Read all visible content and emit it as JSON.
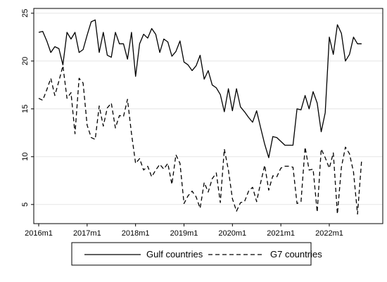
{
  "chart_data": {
    "type": "line",
    "title": "",
    "xlabel": "",
    "ylabel": "",
    "x_start": "2016m1",
    "x_tick_labels": [
      "2016m1",
      "2017m1",
      "2018m1",
      "2019m1",
      "2020m1",
      "2021m1",
      "2022m1"
    ],
    "y_ticks": [
      5,
      10,
      15,
      20,
      25
    ],
    "ylim": [
      3,
      25.5
    ],
    "grid": "horizontal",
    "legend_position": "bottom",
    "series": [
      {
        "name": "Gulf countries",
        "style": "solid",
        "color": "#000000",
        "values": [
          23.0,
          23.1,
          22.1,
          20.9,
          21.5,
          21.3,
          19.6,
          23.0,
          22.3,
          23.0,
          20.9,
          21.2,
          22.7,
          24.1,
          24.3,
          20.9,
          23.0,
          20.6,
          20.4,
          23.0,
          21.8,
          21.8,
          20.2,
          23.0,
          18.4,
          21.8,
          22.8,
          22.4,
          23.4,
          22.8,
          20.9,
          22.3,
          22.0,
          20.5,
          21.0,
          22.1,
          19.9,
          19.6,
          19.0,
          19.5,
          20.6,
          18.1,
          19.0,
          17.5,
          17.2,
          16.5,
          14.7,
          17.1,
          14.8,
          17.1,
          15.2,
          14.7,
          14.1,
          13.6,
          14.8,
          13.0,
          11.3,
          9.9,
          12.1,
          12.0,
          11.6,
          11.2,
          11.2,
          11.2,
          15.0,
          14.9,
          16.4,
          15.0,
          16.8,
          15.6,
          12.6,
          14.6,
          22.5,
          20.7,
          23.8,
          22.9,
          20.0,
          20.7,
          22.5,
          21.8,
          21.8
        ]
      },
      {
        "name": "G7 countries",
        "style": "dashed",
        "color": "#000000",
        "values": [
          16.1,
          15.9,
          17.0,
          18.2,
          16.4,
          17.9,
          19.5,
          16.1,
          16.7,
          12.4,
          18.2,
          17.7,
          13.3,
          12.0,
          11.8,
          15.3,
          13.2,
          15.1,
          15.6,
          13.0,
          14.3,
          14.2,
          16.0,
          12.4,
          9.3,
          9.8,
          8.6,
          9.0,
          7.9,
          8.6,
          9.2,
          8.7,
          9.3,
          7.1,
          10.2,
          9.3,
          5.1,
          5.9,
          6.4,
          5.8,
          4.6,
          7.3,
          6.3,
          7.7,
          8.3,
          5.2,
          10.8,
          8.6,
          5.6,
          4.3,
          5.2,
          5.3,
          6.4,
          6.8,
          5.3,
          7.3,
          9.1,
          6.5,
          8.0,
          7.9,
          8.8,
          9.0,
          9.0,
          8.9,
          5.1,
          5.3,
          11.0,
          8.6,
          8.7,
          4.2,
          10.8,
          9.9,
          8.8,
          10.4,
          4.0,
          8.9,
          11.0,
          10.3,
          8.4,
          4.0,
          9.6
        ]
      }
    ]
  }
}
